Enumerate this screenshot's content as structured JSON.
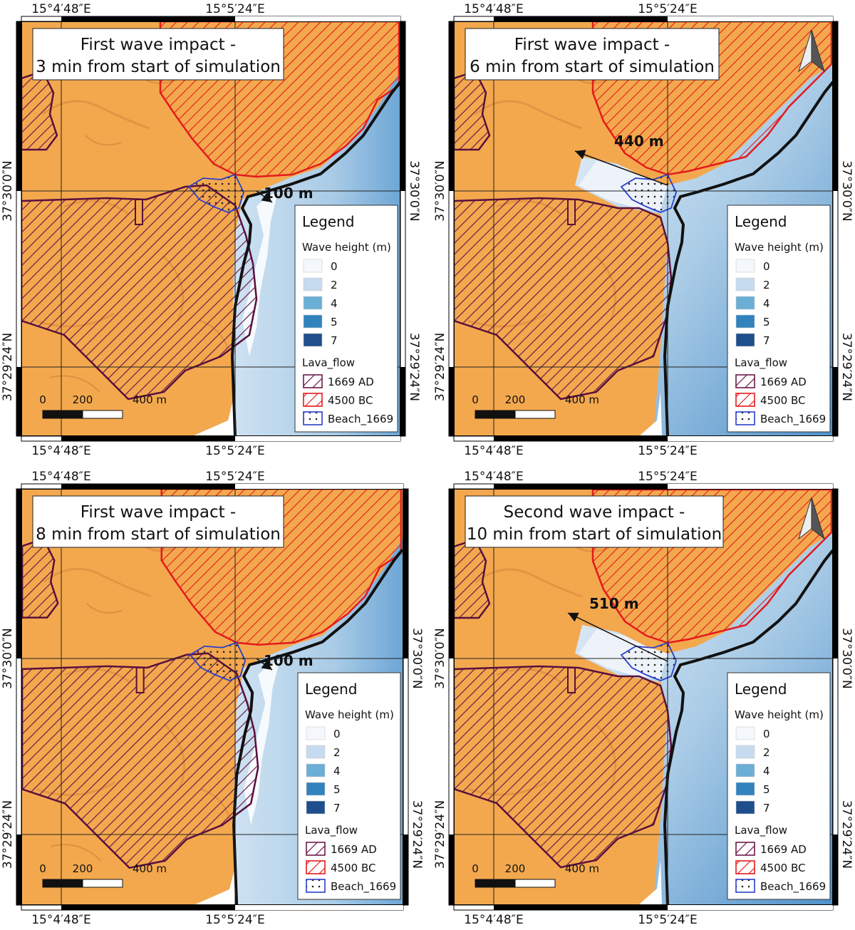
{
  "coords": {
    "lon_left": "15°4′48″E",
    "lon_right": "15°5′24″E",
    "lat_upper": "37°30′0″N",
    "lat_lower": "37°29′24″N"
  },
  "legend": {
    "title": "Legend",
    "wave_heading": "Wave height (m)",
    "wave_classes": [
      {
        "label": "0",
        "color": "#f4f8fc"
      },
      {
        "label": "2",
        "color": "#c6dbef"
      },
      {
        "label": "4",
        "color": "#6baed6"
      },
      {
        "label": "5",
        "color": "#3182bd"
      },
      {
        "label": "7",
        "color": "#1f4e8c"
      }
    ],
    "lava_heading": "Lava_flow",
    "lava_classes": [
      {
        "label": "1669 AD",
        "color": "#6b1a4a",
        "style": "hatch"
      },
      {
        "label": "4500 BC",
        "color": "#e41a1c",
        "style": "hatch"
      },
      {
        "label": "Beach_1669",
        "color": "#2b3fc9",
        "style": "dots"
      }
    ]
  },
  "scale": {
    "labels": [
      "0",
      "200",
      "400 m"
    ]
  },
  "colors": {
    "terrain": "#f3a84e",
    "terrain_dark": "#d9843a",
    "sea": "#b9d5ea",
    "sea_deep": "#5d9bcf",
    "coast": "#111111",
    "hatch_1669": "#6b1a4a",
    "hatch_4500": "#e41a1c",
    "beach_dots": "#2b3fc9"
  },
  "panels": [
    {
      "id": "a",
      "title_line1": "First wave impact -",
      "title_line2": "3 min from start of simulation",
      "distance": "100 m",
      "north_arrow": false
    },
    {
      "id": "b",
      "title_line1": "First wave impact -",
      "title_line2": "6 min from start of simulation",
      "distance": "440 m",
      "north_arrow": true
    },
    {
      "id": "c",
      "title_line1": "First wave impact -",
      "title_line2": "8 min from start of simulation",
      "distance": "100 m",
      "north_arrow": false
    },
    {
      "id": "d",
      "title_line1": "Second wave impact -",
      "title_line2": "10 min from start of simulation",
      "distance": "510 m",
      "north_arrow": true
    }
  ]
}
